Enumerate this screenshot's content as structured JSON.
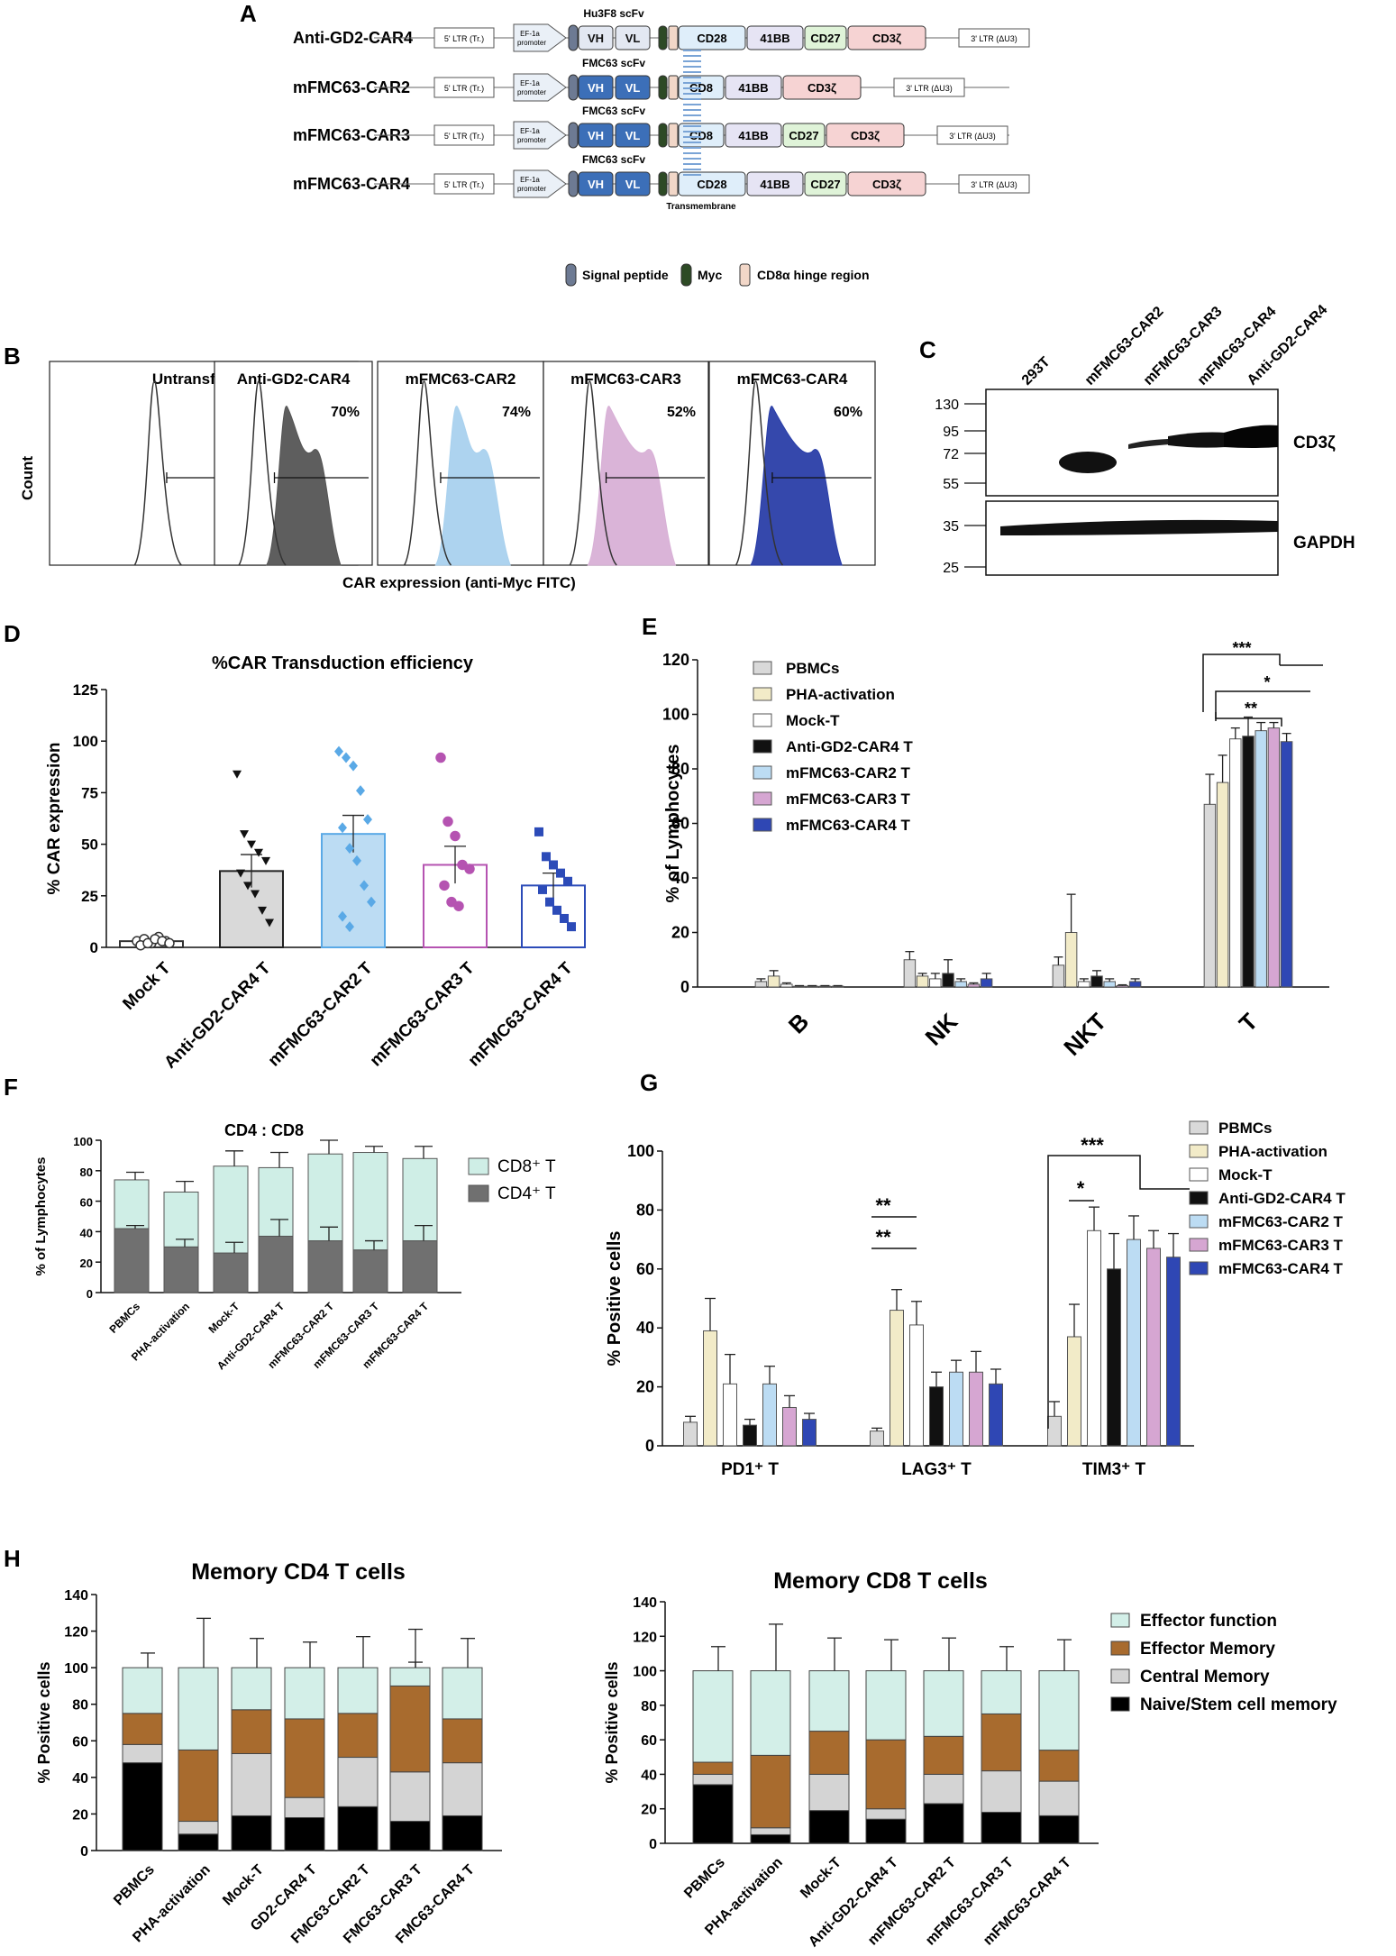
{
  "colors": {
    "pbmc": "#d9d9d9",
    "pha": "#f2ebc8",
    "mock": "#ffffff",
    "gd2": "#111111",
    "car2": "#bcdcf3",
    "car3": "#d6a6d2",
    "car4": "#2f47b4",
    "car2_dot": "#5aa9e6",
    "car3_dot": "#b553b1",
    "car4_dot": "#2c4bb8",
    "cd8_stack": "#cfeee6",
    "cd4_stack": "#707070",
    "effector_function": "#d3efe8",
    "effector_memory": "#a86b2e",
    "central_memory": "#d4d4d4",
    "naive": "#000000"
  },
  "panel_a": {
    "label": "A",
    "constructs": [
      {
        "name": "Anti-GD2-CAR4",
        "scfv": "Hu3F8 scFv",
        "domains": [
          "CD28",
          "41BB",
          "CD27",
          "CD3ζ"
        ]
      },
      {
        "name": "mFMC63-CAR2",
        "scfv": "FMC63 scFv",
        "domains": [
          "CD8",
          "41BB",
          "CD3ζ"
        ]
      },
      {
        "name": "mFMC63-CAR3",
        "scfv": "FMC63 scFv",
        "domains": [
          "CD8",
          "41BB",
          "CD27",
          "CD3ζ"
        ]
      },
      {
        "name": "mFMC63-CAR4",
        "scfv": "FMC63 scFv",
        "domains": [
          "CD28",
          "41BB",
          "CD27",
          "CD3ζ"
        ]
      }
    ],
    "ltr5": "5' LTR (Tr.)",
    "promoter_line1": "EF-1a",
    "promoter_line2": "promoter",
    "vh": "VH",
    "vl": "VL",
    "ltr3": "3' LTR (ΔU3)",
    "transmembrane": "Transmembrane",
    "legend": [
      "Signal peptide",
      "Myc",
      "CD8α hinge region"
    ]
  },
  "panel_b": {
    "label": "B",
    "ylabel": "Count",
    "xlabel": "CAR expression (anti-Myc FITC)",
    "histograms": [
      {
        "name": "Untransfected",
        "pct": ""
      },
      {
        "name": "Anti-GD2-CAR4",
        "pct": "70%"
      },
      {
        "name": "mFMC63-CAR2",
        "pct": "74%"
      },
      {
        "name": "mFMC63-CAR3",
        "pct": "52%"
      },
      {
        "name": "mFMC63-CAR4",
        "pct": "60%"
      }
    ]
  },
  "panel_c": {
    "label": "C",
    "lanes": [
      "293T",
      "mFMC63-CAR2",
      "mFMC63-CAR3",
      "mFMC63-CAR4",
      "Anti-GD2-CAR4"
    ],
    "markers_top": [
      "130",
      "95",
      "72",
      "55"
    ],
    "markers_bottom": [
      "35",
      "25"
    ],
    "blot_top": "CD3ζ",
    "blot_bottom": "GAPDH"
  },
  "chart_data": [
    {
      "id": "D",
      "type": "bar",
      "panel_label": "D",
      "title": "%CAR Transduction efficiency",
      "ylabel": "% CAR expression",
      "ylim": [
        0,
        125
      ],
      "yticks": [
        "0",
        "25",
        "50",
        "75",
        "100",
        "125"
      ],
      "categories": [
        "Mock T",
        "Anti-GD2-CAR4 T",
        "mFMC63-CAR2 T",
        "mFMC63-CAR3 T",
        "mFMC63-CAR4 T"
      ],
      "values": [
        3,
        37,
        55,
        40,
        30
      ],
      "errors": [
        1,
        8,
        9,
        9,
        6
      ],
      "points": [
        [
          3,
          4,
          2,
          5,
          3,
          1,
          2,
          4,
          3,
          2
        ],
        [
          84,
          55,
          50,
          46,
          42,
          36,
          30,
          26,
          18,
          12
        ],
        [
          95,
          92,
          88,
          76,
          62,
          58,
          48,
          42,
          30,
          22,
          15,
          10
        ],
        [
          92,
          61,
          54,
          40,
          38,
          30,
          22,
          20
        ],
        [
          56,
          44,
          40,
          36,
          32,
          28,
          22,
          18,
          14,
          10
        ]
      ]
    },
    {
      "id": "E",
      "type": "bar",
      "panel_label": "E",
      "ylabel": "% of Lymphocytes",
      "ylim": [
        0,
        120
      ],
      "yticks": [
        "0",
        "20",
        "40",
        "60",
        "80",
        "100",
        "120"
      ],
      "categories": [
        "B",
        "NK",
        "NKT",
        "T"
      ],
      "series": [
        {
          "name": "PBMCs",
          "values": [
            2,
            10,
            8,
            67
          ],
          "errors": [
            1,
            3,
            3,
            11
          ]
        },
        {
          "name": "PHA-activation",
          "values": [
            4,
            4,
            20,
            75
          ],
          "errors": [
            2,
            1,
            14,
            10
          ]
        },
        {
          "name": "Mock-T",
          "values": [
            1,
            3,
            2,
            91
          ],
          "errors": [
            0.5,
            2,
            1,
            4
          ]
        },
        {
          "name": "Anti-GD2-CAR4 T",
          "values": [
            0.3,
            5,
            4,
            92
          ],
          "errors": [
            0.2,
            5,
            2,
            7
          ]
        },
        {
          "name": "mFMC63-CAR2 T",
          "values": [
            0.3,
            2,
            2,
            94
          ],
          "errors": [
            0.2,
            1,
            1,
            3
          ]
        },
        {
          "name": "mFMC63-CAR3 T",
          "values": [
            0.3,
            1,
            0.5,
            95
          ],
          "errors": [
            0.2,
            0.5,
            0.3,
            2
          ]
        },
        {
          "name": "mFMC63-CAR4 T",
          "values": [
            0.3,
            3,
            2,
            90
          ],
          "errors": [
            0.2,
            2,
            1,
            3
          ]
        }
      ],
      "significance": [
        "***",
        "*",
        "**"
      ]
    },
    {
      "id": "F",
      "type": "bar",
      "panel_label": "F",
      "title": "CD4 : CD8",
      "ylabel": "% of Lymphocytes",
      "ylim": [
        0,
        100
      ],
      "yticks": [
        "0",
        "20",
        "40",
        "60",
        "80",
        "100"
      ],
      "categories": [
        "PBMCs",
        "PHA-activation",
        "Mock-T",
        "Anti-GD2-CAR4 T",
        "mFMC63-CAR2 T",
        "mFMC63-CAR3 T",
        "mFMC63-CAR4 T"
      ],
      "series": [
        {
          "name": "CD4⁺ T",
          "values": [
            42,
            30,
            26,
            37,
            34,
            28,
            34
          ],
          "errors": [
            2,
            5,
            7,
            11,
            9,
            6,
            10
          ]
        },
        {
          "name": "CD8⁺ T",
          "values": [
            32,
            36,
            57,
            45,
            57,
            64,
            54
          ],
          "errors": [
            5,
            7,
            10,
            10,
            9,
            4,
            8
          ]
        }
      ],
      "legend": [
        "CD8⁺ T",
        "CD4⁺ T"
      ]
    },
    {
      "id": "G",
      "type": "bar",
      "panel_label": "G",
      "ylabel": "% Positive cells",
      "ylim": [
        0,
        100
      ],
      "yticks": [
        "0",
        "20",
        "40",
        "60",
        "80",
        "100"
      ],
      "categories": [
        "PD1⁺ T",
        "LAG3⁺ T",
        "TIM3⁺ T"
      ],
      "series": [
        {
          "name": "PBMCs",
          "values": [
            8,
            5,
            10
          ],
          "errors": [
            2,
            1,
            5
          ]
        },
        {
          "name": "PHA-activation",
          "values": [
            39,
            46,
            37
          ],
          "errors": [
            11,
            7,
            11
          ]
        },
        {
          "name": "Mock-T",
          "values": [
            21,
            41,
            73
          ],
          "errors": [
            10,
            8,
            8
          ]
        },
        {
          "name": "Anti-GD2-CAR4 T",
          "values": [
            7,
            20,
            60
          ],
          "errors": [
            2,
            5,
            12
          ]
        },
        {
          "name": "mFMC63-CAR2 T",
          "values": [
            21,
            25,
            70
          ],
          "errors": [
            6,
            4,
            8
          ]
        },
        {
          "name": "mFMC63-CAR3 T",
          "values": [
            13,
            25,
            67
          ],
          "errors": [
            4,
            7,
            6
          ]
        },
        {
          "name": "mFMC63-CAR4 T",
          "values": [
            9,
            21,
            64
          ],
          "errors": [
            2,
            5,
            8
          ]
        }
      ],
      "significance": [
        "**",
        "**",
        "***",
        "*"
      ]
    },
    {
      "id": "H1",
      "type": "bar",
      "panel_label": "H",
      "title": "Memory CD4 T cells",
      "ylabel": "% Positive cells",
      "ylim": [
        0,
        140
      ],
      "yticks": [
        "0",
        "20",
        "40",
        "60",
        "80",
        "100",
        "120",
        "140"
      ],
      "categories": [
        "PBMCs",
        "PHA-activation",
        "Mock-T",
        "GD2-CAR4 T",
        "FMC63-CAR2 T",
        "FMC63-CAR3 T",
        "FMC63-CAR4 T"
      ],
      "series": [
        {
          "name": "Naive/Stem cell memory",
          "values": [
            48,
            9,
            19,
            18,
            24,
            16,
            19
          ],
          "errors": [
            2,
            4,
            9,
            6,
            11,
            15,
            9
          ]
        },
        {
          "name": "Central Memory",
          "values": [
            10,
            7,
            34,
            11,
            27,
            27,
            29
          ],
          "errors": [
            3,
            4,
            12,
            9,
            10,
            20,
            15
          ]
        },
        {
          "name": "Effector Memory",
          "values": [
            17,
            39,
            24,
            43,
            24,
            47,
            24
          ],
          "errors": [
            11,
            29,
            13,
            9,
            15,
            13,
            14
          ]
        },
        {
          "name": "Effector function",
          "values": [
            25,
            45,
            23,
            28,
            25,
            10,
            28
          ],
          "errors": [
            8,
            27,
            16,
            14,
            17,
            21,
            16
          ]
        }
      ]
    },
    {
      "id": "H2",
      "type": "bar",
      "title": "Memory CD8 T cells",
      "ylabel": "% Positive cells",
      "ylim": [
        0,
        140
      ],
      "yticks": [
        "0",
        "20",
        "40",
        "60",
        "80",
        "100",
        "120",
        "140"
      ],
      "categories": [
        "PBMCs",
        "PHA-activation",
        "Mock-T",
        "Anti-GD2-CAR4 T",
        "mFMC63-CAR2 T",
        "mFMC63-CAR3 T",
        "mFMC63-CAR4 T"
      ],
      "series": [
        {
          "name": "Naive/Stem cell memory",
          "values": [
            34,
            5,
            19,
            14,
            23,
            18,
            16
          ],
          "errors": [
            2,
            2,
            8,
            5,
            9,
            13,
            8
          ]
        },
        {
          "name": "Central Memory",
          "values": [
            6,
            4,
            21,
            6,
            17,
            24,
            20
          ],
          "errors": [
            2,
            3,
            10,
            6,
            8,
            13,
            9
          ]
        },
        {
          "name": "Effector Memory",
          "values": [
            7,
            42,
            25,
            40,
            22,
            33,
            18
          ],
          "errors": [
            1,
            26,
            14,
            22,
            12,
            19,
            9
          ]
        },
        {
          "name": "Effector function",
          "values": [
            53,
            49,
            35,
            40,
            38,
            25,
            46
          ],
          "errors": [
            14,
            27,
            19,
            18,
            19,
            14,
            18
          ]
        }
      ],
      "legend": [
        "Effector function",
        "Effector Memory",
        "Central Memory",
        "Naive/Stem cell memory"
      ]
    }
  ]
}
